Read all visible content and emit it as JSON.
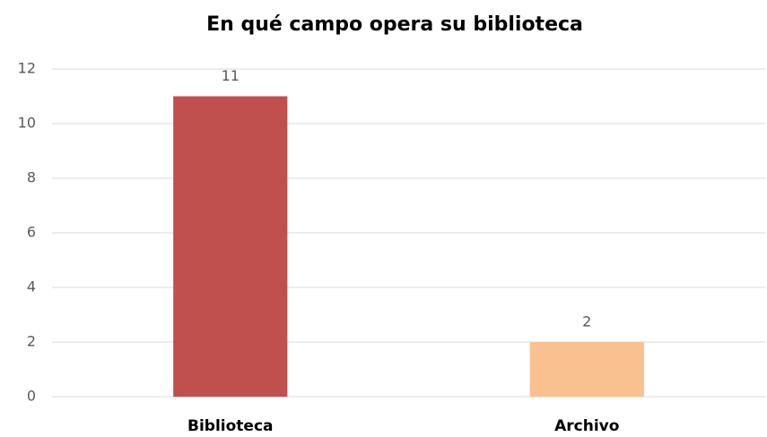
{
  "chart_data": {
    "type": "bar",
    "title": "En qué campo opera su biblioteca",
    "categories": [
      "Biblioteca",
      "Archivo"
    ],
    "values": [
      11,
      2
    ],
    "colors": [
      "#c0504d",
      "#f9c090"
    ],
    "ylim": [
      0,
      12
    ],
    "yticks": [
      0,
      2,
      4,
      6,
      8,
      10,
      12
    ],
    "grid": true,
    "data_labels": true
  }
}
